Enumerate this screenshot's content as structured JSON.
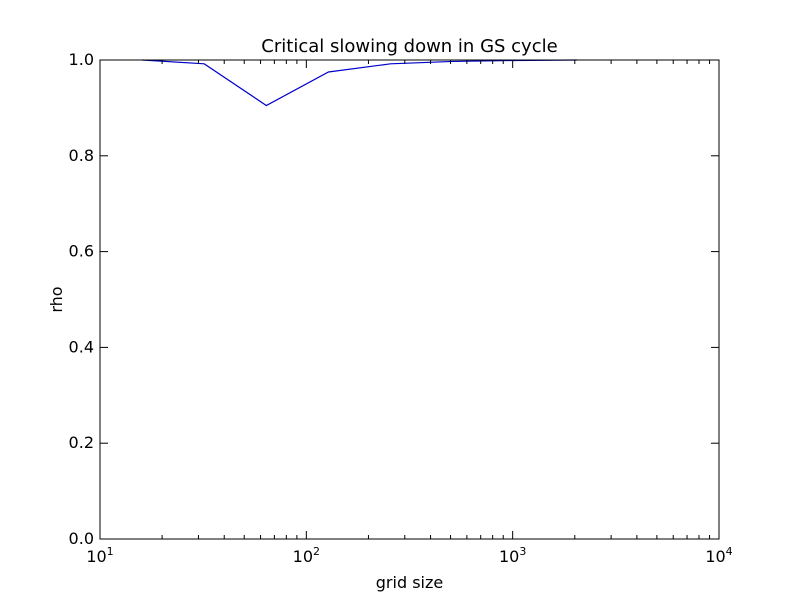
{
  "chart_data": {
    "type": "line",
    "title": "Critical slowing down in GS cycle",
    "xlabel": "grid size",
    "ylabel": "rho",
    "x_scale": "log",
    "xlim": [
      10,
      10000
    ],
    "ylim": [
      0.0,
      1.0
    ],
    "grid": false,
    "x_ticks": [
      {
        "value": 10,
        "base": "10",
        "exp": "1"
      },
      {
        "value": 100,
        "base": "10",
        "exp": "2"
      },
      {
        "value": 1000,
        "base": "10",
        "exp": "3"
      },
      {
        "value": 10000,
        "base": "10",
        "exp": "4"
      }
    ],
    "y_ticks": [
      {
        "value": 0.0,
        "label": "0.0"
      },
      {
        "value": 0.2,
        "label": "0.2"
      },
      {
        "value": 0.4,
        "label": "0.4"
      },
      {
        "value": 0.6,
        "label": "0.6"
      },
      {
        "value": 0.8,
        "label": "0.8"
      },
      {
        "value": 1.0,
        "label": "1.0"
      }
    ],
    "series": [
      {
        "color": "#0000cc",
        "x": [
          16,
          32,
          64,
          128,
          256,
          512,
          1024,
          2048
        ],
        "y": [
          1.0,
          0.992,
          0.905,
          0.975,
          0.992,
          0.997,
          0.999,
          1.0
        ]
      }
    ]
  }
}
